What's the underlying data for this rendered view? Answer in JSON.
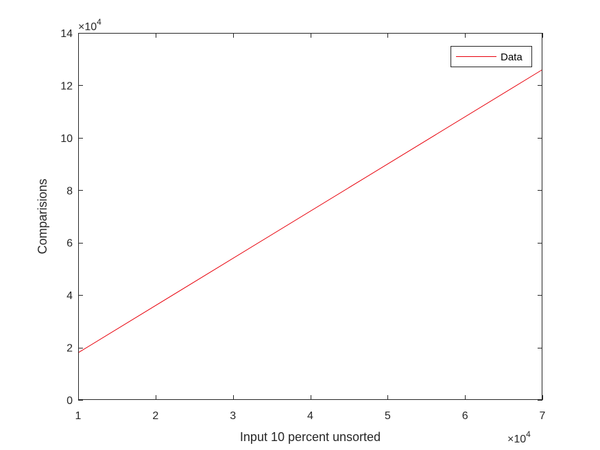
{
  "chart_data": {
    "type": "line",
    "title": "",
    "xlabel": "Input 10 percent unsorted",
    "ylabel": "Comparisions",
    "xlim": [
      10000,
      70000
    ],
    "ylim": [
      0,
      140000
    ],
    "x_ticks": [
      10000,
      20000,
      30000,
      40000,
      50000,
      60000,
      70000
    ],
    "x_tick_labels": [
      "1",
      "2",
      "3",
      "4",
      "5",
      "6",
      "7"
    ],
    "y_ticks": [
      0,
      20000,
      40000,
      60000,
      80000,
      100000,
      120000,
      140000
    ],
    "y_tick_labels": [
      "0",
      "2",
      "4",
      "6",
      "8",
      "10",
      "12",
      "14"
    ],
    "x_exponent_label": {
      "base": "×10",
      "exp": "4"
    },
    "y_exponent_label": {
      "base": "×10",
      "exp": "4"
    },
    "grid": false,
    "legend_position": "top-right",
    "series": [
      {
        "name": "Data",
        "color": "#e8000b",
        "x": [
          10000,
          70000
        ],
        "y": [
          18000,
          126000
        ]
      }
    ]
  }
}
